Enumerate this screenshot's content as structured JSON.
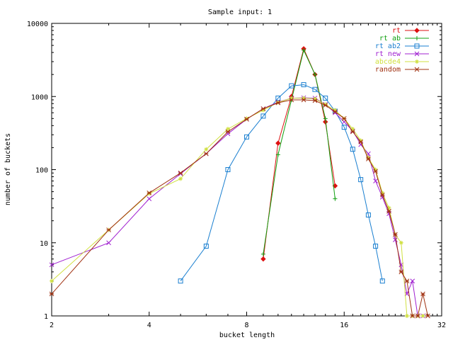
{
  "chart_data": {
    "type": "line",
    "title": "Sample input: 1",
    "xlabel": "bucket length",
    "ylabel": "number of buckets",
    "xscale": "log2",
    "yscale": "log10",
    "xlim": [
      2,
      32
    ],
    "ylim": [
      1,
      10000
    ],
    "xticks": [
      2,
      4,
      8,
      16,
      32
    ],
    "yticks": [
      1,
      10,
      100,
      1000,
      10000
    ],
    "grid": false,
    "legend_position": "top-right",
    "series": [
      {
        "name": "rt",
        "color": "#dd1111",
        "marker": "diamond",
        "points": [
          [
            9,
            6
          ],
          [
            10,
            230
          ],
          [
            11,
            1000
          ],
          [
            12,
            4500
          ],
          [
            13,
            2000
          ],
          [
            14,
            450
          ],
          [
            15,
            60
          ]
        ]
      },
      {
        "name": "rt ab",
        "color": "#10a010",
        "marker": "plus",
        "points": [
          [
            9,
            7
          ],
          [
            10,
            160
          ],
          [
            11,
            900
          ],
          [
            12,
            4300
          ],
          [
            13,
            2000
          ],
          [
            14,
            500
          ],
          [
            15,
            40
          ]
        ]
      },
      {
        "name": "rt ab2",
        "color": "#1a7fd0",
        "marker": "square",
        "points": [
          [
            5,
            3
          ],
          [
            6,
            9
          ],
          [
            7,
            100
          ],
          [
            8,
            280
          ],
          [
            9,
            540
          ],
          [
            10,
            950
          ],
          [
            11,
            1400
          ],
          [
            12,
            1450
          ],
          [
            13,
            1250
          ],
          [
            14,
            950
          ],
          [
            15,
            630
          ],
          [
            16,
            380
          ],
          [
            17,
            190
          ],
          [
            18,
            73
          ],
          [
            19,
            24
          ],
          [
            20,
            9
          ],
          [
            21,
            3
          ]
        ]
      },
      {
        "name": "rt new",
        "color": "#a020d0",
        "marker": "x",
        "points": [
          [
            2,
            5
          ],
          [
            3,
            10
          ],
          [
            4,
            40
          ],
          [
            5,
            88
          ],
          [
            6,
            165
          ],
          [
            7,
            310
          ],
          [
            8,
            490
          ],
          [
            9,
            680
          ],
          [
            10,
            840
          ],
          [
            11,
            950
          ],
          [
            12,
            960
          ],
          [
            13,
            950
          ],
          [
            14,
            780
          ],
          [
            15,
            600
          ],
          [
            16,
            450
          ],
          [
            17,
            340
          ],
          [
            18,
            220
          ],
          [
            19,
            165
          ],
          [
            20,
            70
          ],
          [
            21,
            42
          ],
          [
            22,
            25
          ],
          [
            23,
            11
          ],
          [
            24,
            5
          ],
          [
            25,
            2
          ],
          [
            26,
            3
          ],
          [
            27,
            1
          ],
          [
            28,
            1
          ]
        ]
      },
      {
        "name": "abcde4",
        "color": "#d0e040",
        "marker": "star",
        "points": [
          [
            2,
            3
          ],
          [
            3,
            15
          ],
          [
            4,
            47
          ],
          [
            5,
            75
          ],
          [
            6,
            190
          ],
          [
            7,
            360
          ],
          [
            8,
            500
          ],
          [
            9,
            650
          ],
          [
            10,
            830
          ],
          [
            11,
            950
          ],
          [
            12,
            950
          ],
          [
            13,
            930
          ],
          [
            14,
            780
          ],
          [
            15,
            650
          ],
          [
            16,
            500
          ],
          [
            17,
            360
          ],
          [
            18,
            250
          ],
          [
            19,
            145
          ],
          [
            20,
            100
          ],
          [
            21,
            48
          ],
          [
            22,
            30
          ],
          [
            23,
            13
          ],
          [
            24,
            10
          ],
          [
            25,
            1
          ],
          [
            26,
            1
          ],
          [
            27,
            1
          ],
          [
            28,
            1
          ]
        ]
      },
      {
        "name": "random",
        "color": "#a03010",
        "marker": "asterisk",
        "points": [
          [
            2,
            2
          ],
          [
            3,
            15
          ],
          [
            4,
            48
          ],
          [
            5,
            90
          ],
          [
            6,
            165
          ],
          [
            7,
            330
          ],
          [
            8,
            490
          ],
          [
            9,
            680
          ],
          [
            10,
            820
          ],
          [
            11,
            900
          ],
          [
            12,
            900
          ],
          [
            13,
            880
          ],
          [
            14,
            760
          ],
          [
            15,
            620
          ],
          [
            16,
            500
          ],
          [
            17,
            330
          ],
          [
            18,
            240
          ],
          [
            19,
            140
          ],
          [
            20,
            95
          ],
          [
            21,
            45
          ],
          [
            22,
            27
          ],
          [
            23,
            13
          ],
          [
            24,
            4
          ],
          [
            25,
            3
          ],
          [
            26,
            1
          ],
          [
            27,
            1
          ],
          [
            28,
            2
          ],
          [
            29,
            1
          ]
        ]
      }
    ]
  }
}
